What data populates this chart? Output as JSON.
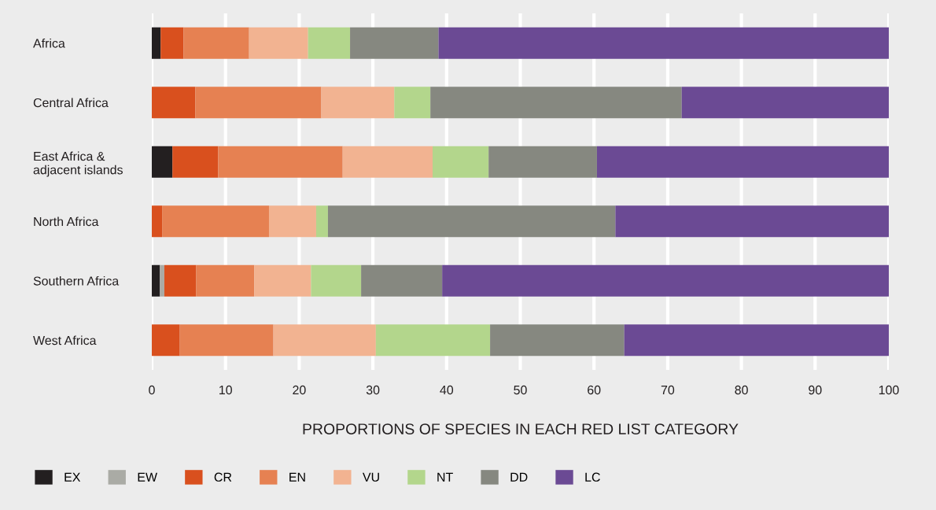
{
  "chart_data": {
    "type": "bar",
    "orientation": "horizontal",
    "stacked": true,
    "categories": [
      "Africa",
      "Central Africa",
      "East Africa &\nadjacent islands",
      "North Africa",
      "Southern Africa",
      "West Africa"
    ],
    "series": [
      {
        "name": "EX",
        "color": "#231f20",
        "values": [
          1.2,
          0,
          2.8,
          0,
          1.1,
          0
        ]
      },
      {
        "name": "EW",
        "color": "#aaaba5",
        "values": [
          0,
          0,
          0,
          0,
          0.6,
          0
        ]
      },
      {
        "name": "CR",
        "color": "#d9501e",
        "values": [
          3.1,
          5.9,
          6.2,
          1.4,
          4.3,
          3.8
        ]
      },
      {
        "name": "EN",
        "color": "#e68152",
        "values": [
          8.9,
          17.1,
          16.9,
          14.5,
          7.9,
          12.7
        ]
      },
      {
        "name": "VU",
        "color": "#f2b391",
        "values": [
          8.0,
          9.9,
          12.2,
          6.4,
          7.7,
          13.9
        ]
      },
      {
        "name": "NT",
        "color": "#b3d68c",
        "values": [
          5.7,
          4.9,
          7.6,
          1.6,
          6.8,
          15.5
        ]
      },
      {
        "name": "DD",
        "color": "#868880",
        "values": [
          12.0,
          34.1,
          14.7,
          39.0,
          11.0,
          18.2
        ]
      },
      {
        "name": "LC",
        "color": "#6b4a94",
        "values": [
          61.1,
          28.1,
          39.6,
          37.1,
          60.6,
          35.9
        ]
      }
    ],
    "xlim": [
      0,
      100
    ],
    "xticks": [
      0,
      10,
      20,
      30,
      40,
      50,
      60,
      70,
      80,
      90,
      100
    ],
    "xlabel": "PROPORTIONS OF SPECIES IN EACH RED LIST CATEGORY",
    "grid": "x",
    "legend": "bottom left"
  }
}
